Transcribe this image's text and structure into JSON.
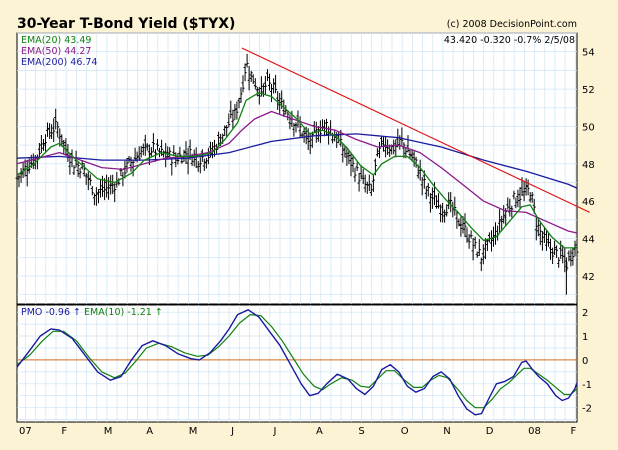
{
  "chart_data": [
    {
      "type": "ohlc",
      "title": "30-Year T-Bond Yield ($TYX)",
      "copyright": "(c) 2008 DecisionPoint.com",
      "quote": {
        "last": "43.420",
        "change": "-0.320",
        "change_pct": "-0.7%",
        "date": "2/5/08"
      },
      "ylim": [
        40.5,
        55
      ],
      "yticks": [
        42,
        44,
        46,
        48,
        50,
        52,
        54
      ],
      "x_labels": [
        "07",
        "F",
        "M",
        "A",
        "M",
        "J",
        "J",
        "A",
        "S",
        "O",
        "N",
        "D",
        "08",
        "F"
      ],
      "x_label_months": [
        0,
        1,
        2,
        3,
        4,
        5,
        6,
        7,
        8,
        9,
        10,
        11,
        12,
        13
      ],
      "x_domain_months": [
        0,
        13.2
      ],
      "legend": [
        {
          "label": "EMA(20)",
          "value": "43.49",
          "color": "#108010"
        },
        {
          "label": "EMA(50)",
          "value": "44.27",
          "color": "#8a1a8a"
        },
        {
          "label": "EMA(200)",
          "value": "46.74",
          "color": "#1a1aa0"
        }
      ],
      "price_anchors": [
        [
          0.0,
          47.2
        ],
        [
          0.25,
          47.9
        ],
        [
          0.45,
          48.3
        ],
        [
          0.65,
          49.4
        ],
        [
          0.85,
          49.9
        ],
        [
          0.95,
          50.0
        ],
        [
          1.15,
          48.8
        ],
        [
          1.35,
          48.0
        ],
        [
          1.55,
          47.8
        ],
        [
          1.85,
          46.4
        ],
        [
          2.05,
          46.6
        ],
        [
          2.35,
          47.0
        ],
        [
          2.65,
          48.0
        ],
        [
          2.95,
          48.7
        ],
        [
          3.2,
          48.8
        ],
        [
          3.45,
          48.5
        ],
        [
          3.75,
          48.3
        ],
        [
          4.0,
          48.6
        ],
        [
          4.3,
          48.3
        ],
        [
          4.55,
          48.5
        ],
        [
          4.75,
          49.2
        ],
        [
          4.95,
          50.0
        ],
        [
          5.15,
          50.7
        ],
        [
          5.3,
          52.0
        ],
        [
          5.4,
          53.4
        ],
        [
          5.55,
          52.6
        ],
        [
          5.75,
          51.8
        ],
        [
          5.9,
          52.3
        ],
        [
          6.05,
          52.0
        ],
        [
          6.2,
          51.2
        ],
        [
          6.45,
          50.6
        ],
        [
          6.7,
          49.8
        ],
        [
          6.9,
          49.0
        ],
        [
          7.1,
          49.8
        ],
        [
          7.3,
          50.1
        ],
        [
          7.55,
          49.3
        ],
        [
          7.75,
          48.5
        ],
        [
          7.95,
          47.8
        ],
        [
          8.15,
          47.0
        ],
        [
          8.35,
          46.5
        ],
        [
          8.5,
          48.4
        ],
        [
          8.65,
          49.2
        ],
        [
          8.85,
          48.8
        ],
        [
          9.05,
          49.2
        ],
        [
          9.25,
          48.6
        ],
        [
          9.45,
          47.8
        ],
        [
          9.65,
          46.6
        ],
        [
          9.85,
          46.0
        ],
        [
          10.0,
          45.6
        ],
        [
          10.2,
          45.8
        ],
        [
          10.4,
          45.0
        ],
        [
          10.6,
          44.3
        ],
        [
          10.8,
          43.5
        ],
        [
          10.95,
          43.0
        ],
        [
          11.1,
          43.6
        ],
        [
          11.3,
          44.3
        ],
        [
          11.5,
          45.4
        ],
        [
          11.75,
          46.2
        ],
        [
          11.95,
          46.4
        ],
        [
          12.1,
          46.6
        ],
        [
          12.25,
          44.8
        ],
        [
          12.4,
          44.0
        ],
        [
          12.55,
          43.5
        ],
        [
          12.7,
          43.2
        ],
        [
          12.85,
          43.0
        ],
        [
          12.95,
          42.6
        ],
        [
          13.05,
          43.1
        ],
        [
          13.15,
          43.6
        ],
        [
          13.2,
          43.4
        ]
      ],
      "ema20_anchors": [
        [
          0.0,
          47.4
        ],
        [
          0.4,
          48.0
        ],
        [
          0.8,
          48.9
        ],
        [
          1.0,
          49.1
        ],
        [
          1.4,
          48.2
        ],
        [
          1.9,
          47.2
        ],
        [
          2.3,
          47.0
        ],
        [
          2.7,
          47.5
        ],
        [
          3.0,
          48.2
        ],
        [
          3.4,
          48.6
        ],
        [
          3.8,
          48.4
        ],
        [
          4.2,
          48.4
        ],
        [
          4.6,
          48.6
        ],
        [
          4.9,
          49.3
        ],
        [
          5.2,
          50.2
        ],
        [
          5.4,
          51.4
        ],
        [
          5.7,
          51.8
        ],
        [
          6.0,
          51.6
        ],
        [
          6.3,
          51.0
        ],
        [
          6.6,
          50.4
        ],
        [
          6.9,
          49.6
        ],
        [
          7.2,
          49.8
        ],
        [
          7.5,
          49.5
        ],
        [
          7.8,
          48.8
        ],
        [
          8.1,
          47.9
        ],
        [
          8.4,
          47.4
        ],
        [
          8.6,
          48.0
        ],
        [
          8.9,
          48.4
        ],
        [
          9.2,
          48.4
        ],
        [
          9.5,
          47.8
        ],
        [
          9.8,
          46.9
        ],
        [
          10.1,
          46.1
        ],
        [
          10.4,
          45.4
        ],
        [
          10.7,
          44.6
        ],
        [
          11.0,
          43.9
        ],
        [
          11.3,
          44.1
        ],
        [
          11.6,
          44.9
        ],
        [
          11.9,
          45.7
        ],
        [
          12.1,
          45.8
        ],
        [
          12.3,
          45.0
        ],
        [
          12.6,
          44.1
        ],
        [
          12.9,
          43.5
        ],
        [
          13.2,
          43.5
        ]
      ],
      "ema50_anchors": [
        [
          0.0,
          48.0
        ],
        [
          0.5,
          48.3
        ],
        [
          1.0,
          48.6
        ],
        [
          1.5,
          48.2
        ],
        [
          2.0,
          47.8
        ],
        [
          2.5,
          47.7
        ],
        [
          3.0,
          48.0
        ],
        [
          3.5,
          48.3
        ],
        [
          4.0,
          48.4
        ],
        [
          4.5,
          48.6
        ],
        [
          5.0,
          49.1
        ],
        [
          5.3,
          49.8
        ],
        [
          5.6,
          50.4
        ],
        [
          6.0,
          50.8
        ],
        [
          6.5,
          50.4
        ],
        [
          7.0,
          50.0
        ],
        [
          7.5,
          49.8
        ],
        [
          8.0,
          49.3
        ],
        [
          8.5,
          48.9
        ],
        [
          9.0,
          49.0
        ],
        [
          9.5,
          48.6
        ],
        [
          10.0,
          47.8
        ],
        [
          10.5,
          46.9
        ],
        [
          11.0,
          46.0
        ],
        [
          11.5,
          45.5
        ],
        [
          12.0,
          45.4
        ],
        [
          12.5,
          44.9
        ],
        [
          13.0,
          44.4
        ],
        [
          13.2,
          44.3
        ]
      ],
      "ema200_anchors": [
        [
          0.0,
          48.3
        ],
        [
          1.0,
          48.4
        ],
        [
          2.0,
          48.2
        ],
        [
          3.0,
          48.2
        ],
        [
          4.0,
          48.3
        ],
        [
          5.0,
          48.6
        ],
        [
          6.0,
          49.2
        ],
        [
          7.0,
          49.5
        ],
        [
          8.0,
          49.6
        ],
        [
          9.0,
          49.4
        ],
        [
          10.0,
          48.9
        ],
        [
          11.0,
          48.2
        ],
        [
          12.0,
          47.6
        ],
        [
          13.0,
          46.9
        ],
        [
          13.2,
          46.7
        ]
      ],
      "trendline": [
        [
          5.3,
          54.2
        ],
        [
          13.5,
          45.4
        ]
      ],
      "outlier_low": [
        12.95,
        41.0
      ]
    },
    {
      "type": "line",
      "legend": [
        {
          "label": "PMO",
          "value": "-0.96",
          "arrow": "up",
          "color": "#1a1aa0"
        },
        {
          "label": "EMA(10)",
          "value": "-1.21",
          "arrow": "up",
          "color": "#108010"
        }
      ],
      "ylim": [
        -2.6,
        2.3
      ],
      "yticks": [
        -2,
        -1,
        0,
        1,
        2
      ],
      "zero_line": 0,
      "series": [
        {
          "name": "PMO",
          "color": "#1a1aa0",
          "points": [
            [
              0.0,
              -0.3
            ],
            [
              0.3,
              0.4
            ],
            [
              0.55,
              1.0
            ],
            [
              0.8,
              1.3
            ],
            [
              1.0,
              1.25
            ],
            [
              1.3,
              0.9
            ],
            [
              1.6,
              0.2
            ],
            [
              1.9,
              -0.5
            ],
            [
              2.2,
              -0.85
            ],
            [
              2.45,
              -0.7
            ],
            [
              2.7,
              0.0
            ],
            [
              2.95,
              0.6
            ],
            [
              3.2,
              0.8
            ],
            [
              3.5,
              0.6
            ],
            [
              3.8,
              0.25
            ],
            [
              4.1,
              0.05
            ],
            [
              4.3,
              0.0
            ],
            [
              4.55,
              0.3
            ],
            [
              4.8,
              0.8
            ],
            [
              5.0,
              1.3
            ],
            [
              5.2,
              1.9
            ],
            [
              5.45,
              2.1
            ],
            [
              5.7,
              1.8
            ],
            [
              5.95,
              1.2
            ],
            [
              6.2,
              0.6
            ],
            [
              6.45,
              -0.2
            ],
            [
              6.7,
              -1.0
            ],
            [
              6.9,
              -1.5
            ],
            [
              7.1,
              -1.4
            ],
            [
              7.3,
              -1.0
            ],
            [
              7.55,
              -0.6
            ],
            [
              7.8,
              -0.8
            ],
            [
              8.0,
              -1.2
            ],
            [
              8.2,
              -1.45
            ],
            [
              8.4,
              -1.1
            ],
            [
              8.6,
              -0.4
            ],
            [
              8.8,
              -0.2
            ],
            [
              9.0,
              -0.5
            ],
            [
              9.2,
              -1.1
            ],
            [
              9.4,
              -1.35
            ],
            [
              9.6,
              -1.2
            ],
            [
              9.8,
              -0.7
            ],
            [
              10.0,
              -0.5
            ],
            [
              10.2,
              -0.8
            ],
            [
              10.4,
              -1.5
            ],
            [
              10.6,
              -2.05
            ],
            [
              10.8,
              -2.3
            ],
            [
              10.95,
              -2.25
            ],
            [
              11.1,
              -1.7
            ],
            [
              11.3,
              -1.0
            ],
            [
              11.5,
              -0.9
            ],
            [
              11.7,
              -0.7
            ],
            [
              11.9,
              -0.1
            ],
            [
              12.0,
              -0.05
            ],
            [
              12.15,
              -0.4
            ],
            [
              12.3,
              -0.7
            ],
            [
              12.5,
              -1.0
            ],
            [
              12.7,
              -1.5
            ],
            [
              12.85,
              -1.7
            ],
            [
              13.0,
              -1.6
            ],
            [
              13.15,
              -1.2
            ],
            [
              13.2,
              -0.96
            ]
          ]
        },
        {
          "name": "EMA(10)",
          "color": "#108010",
          "points": [
            [
              0.0,
              -0.2
            ],
            [
              0.3,
              0.2
            ],
            [
              0.6,
              0.8
            ],
            [
              0.85,
              1.2
            ],
            [
              1.1,
              1.2
            ],
            [
              1.4,
              0.8
            ],
            [
              1.7,
              0.1
            ],
            [
              2.0,
              -0.5
            ],
            [
              2.3,
              -0.75
            ],
            [
              2.55,
              -0.55
            ],
            [
              2.8,
              -0.05
            ],
            [
              3.05,
              0.5
            ],
            [
              3.35,
              0.7
            ],
            [
              3.65,
              0.55
            ],
            [
              3.95,
              0.3
            ],
            [
              4.25,
              0.15
            ],
            [
              4.5,
              0.2
            ],
            [
              4.75,
              0.55
            ],
            [
              5.0,
              1.0
            ],
            [
              5.25,
              1.55
            ],
            [
              5.5,
              1.9
            ],
            [
              5.75,
              1.85
            ],
            [
              6.0,
              1.4
            ],
            [
              6.25,
              0.8
            ],
            [
              6.5,
              0.1
            ],
            [
              6.75,
              -0.6
            ],
            [
              7.0,
              -1.1
            ],
            [
              7.2,
              -1.25
            ],
            [
              7.4,
              -1.0
            ],
            [
              7.65,
              -0.75
            ],
            [
              7.9,
              -0.85
            ],
            [
              8.1,
              -1.1
            ],
            [
              8.3,
              -1.15
            ],
            [
              8.5,
              -0.8
            ],
            [
              8.7,
              -0.45
            ],
            [
              8.9,
              -0.45
            ],
            [
              9.1,
              -0.8
            ],
            [
              9.35,
              -1.15
            ],
            [
              9.55,
              -1.15
            ],
            [
              9.75,
              -0.85
            ],
            [
              9.95,
              -0.65
            ],
            [
              10.15,
              -0.75
            ],
            [
              10.4,
              -1.25
            ],
            [
              10.6,
              -1.7
            ],
            [
              10.8,
              -2.0
            ],
            [
              11.0,
              -2.0
            ],
            [
              11.2,
              -1.65
            ],
            [
              11.4,
              -1.2
            ],
            [
              11.6,
              -0.95
            ],
            [
              11.8,
              -0.6
            ],
            [
              11.95,
              -0.35
            ],
            [
              12.1,
              -0.35
            ],
            [
              12.3,
              -0.6
            ],
            [
              12.5,
              -0.85
            ],
            [
              12.7,
              -1.15
            ],
            [
              12.9,
              -1.45
            ],
            [
              13.05,
              -1.45
            ],
            [
              13.2,
              -1.21
            ]
          ]
        }
      ]
    }
  ]
}
